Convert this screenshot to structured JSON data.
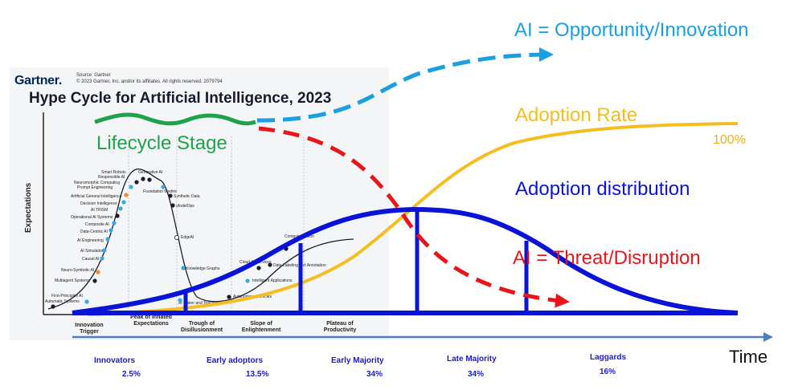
{
  "gartner": {
    "logo": "Gartner.",
    "source_line1": "Source: Gartner",
    "source_line2": "© 2023 Gartner, Inc. and/or its affiliates. All rights reserved. 2079794",
    "title": "Hype Cycle for Artificial Intelligence, 2023",
    "y_axis_label": "Expectations",
    "phases": [
      "Innovation Trigger",
      "Peak of Inflated Expectations",
      "Trough of Disillusionment",
      "Slope of Enlightenment",
      "Plateau of Productivity"
    ],
    "technologies": [
      "Smart Robots",
      "Generative AI",
      "Responsible AI",
      "Neuromorphic Computing",
      "Prompt Engineering",
      "Foundation Models",
      "Artificial General Intelligence",
      "Synthetic Data",
      "Decision Intelligence",
      "ModelOps",
      "AI TRiSM",
      "Operational AI Systems",
      "Composite AI",
      "Data-Centric AI",
      "EdgeAI",
      "AI Engineering",
      "AI Simulation",
      "Causal AI",
      "Knowledge Graphs",
      "Neuro-Symbolic AI",
      "Multiagent Systems",
      "First-Principles AI",
      "Automatic Systems",
      "Computer Vision",
      "Cloud AI Services",
      "Data Labeling and Annotation",
      "Intelligent Applications",
      "Autonomous Vehicles",
      "AI Maker and Teaching Kits"
    ]
  },
  "labels": {
    "opportunity": "AI = Opportunity/Innovation",
    "adoption_rate": "Adoption Rate",
    "adoption_rate_pct": "100%",
    "adoption_distribution": "Adoption distribution",
    "threat": "AI = Threat/Disruption",
    "lifecycle": "Lifecycle Stage",
    "time": "Time"
  },
  "segments": [
    {
      "name": "Innovators",
      "pct": "2.5%"
    },
    {
      "name": "Early adoptors",
      "pct": "13.5%"
    },
    {
      "name": "Early Majority",
      "pct": "34%"
    },
    {
      "name": "Late Majority",
      "pct": "34%"
    },
    {
      "name": "Laggards",
      "pct": "16%"
    }
  ],
  "colors": {
    "opportunity": "#1aa0e0",
    "adoption_rate": "#f5bd1f",
    "distribution": "#0a14d6",
    "threat": "#e8161a",
    "lifecycle": "#1ea34a",
    "time_axis": "#4f7fc0"
  }
}
